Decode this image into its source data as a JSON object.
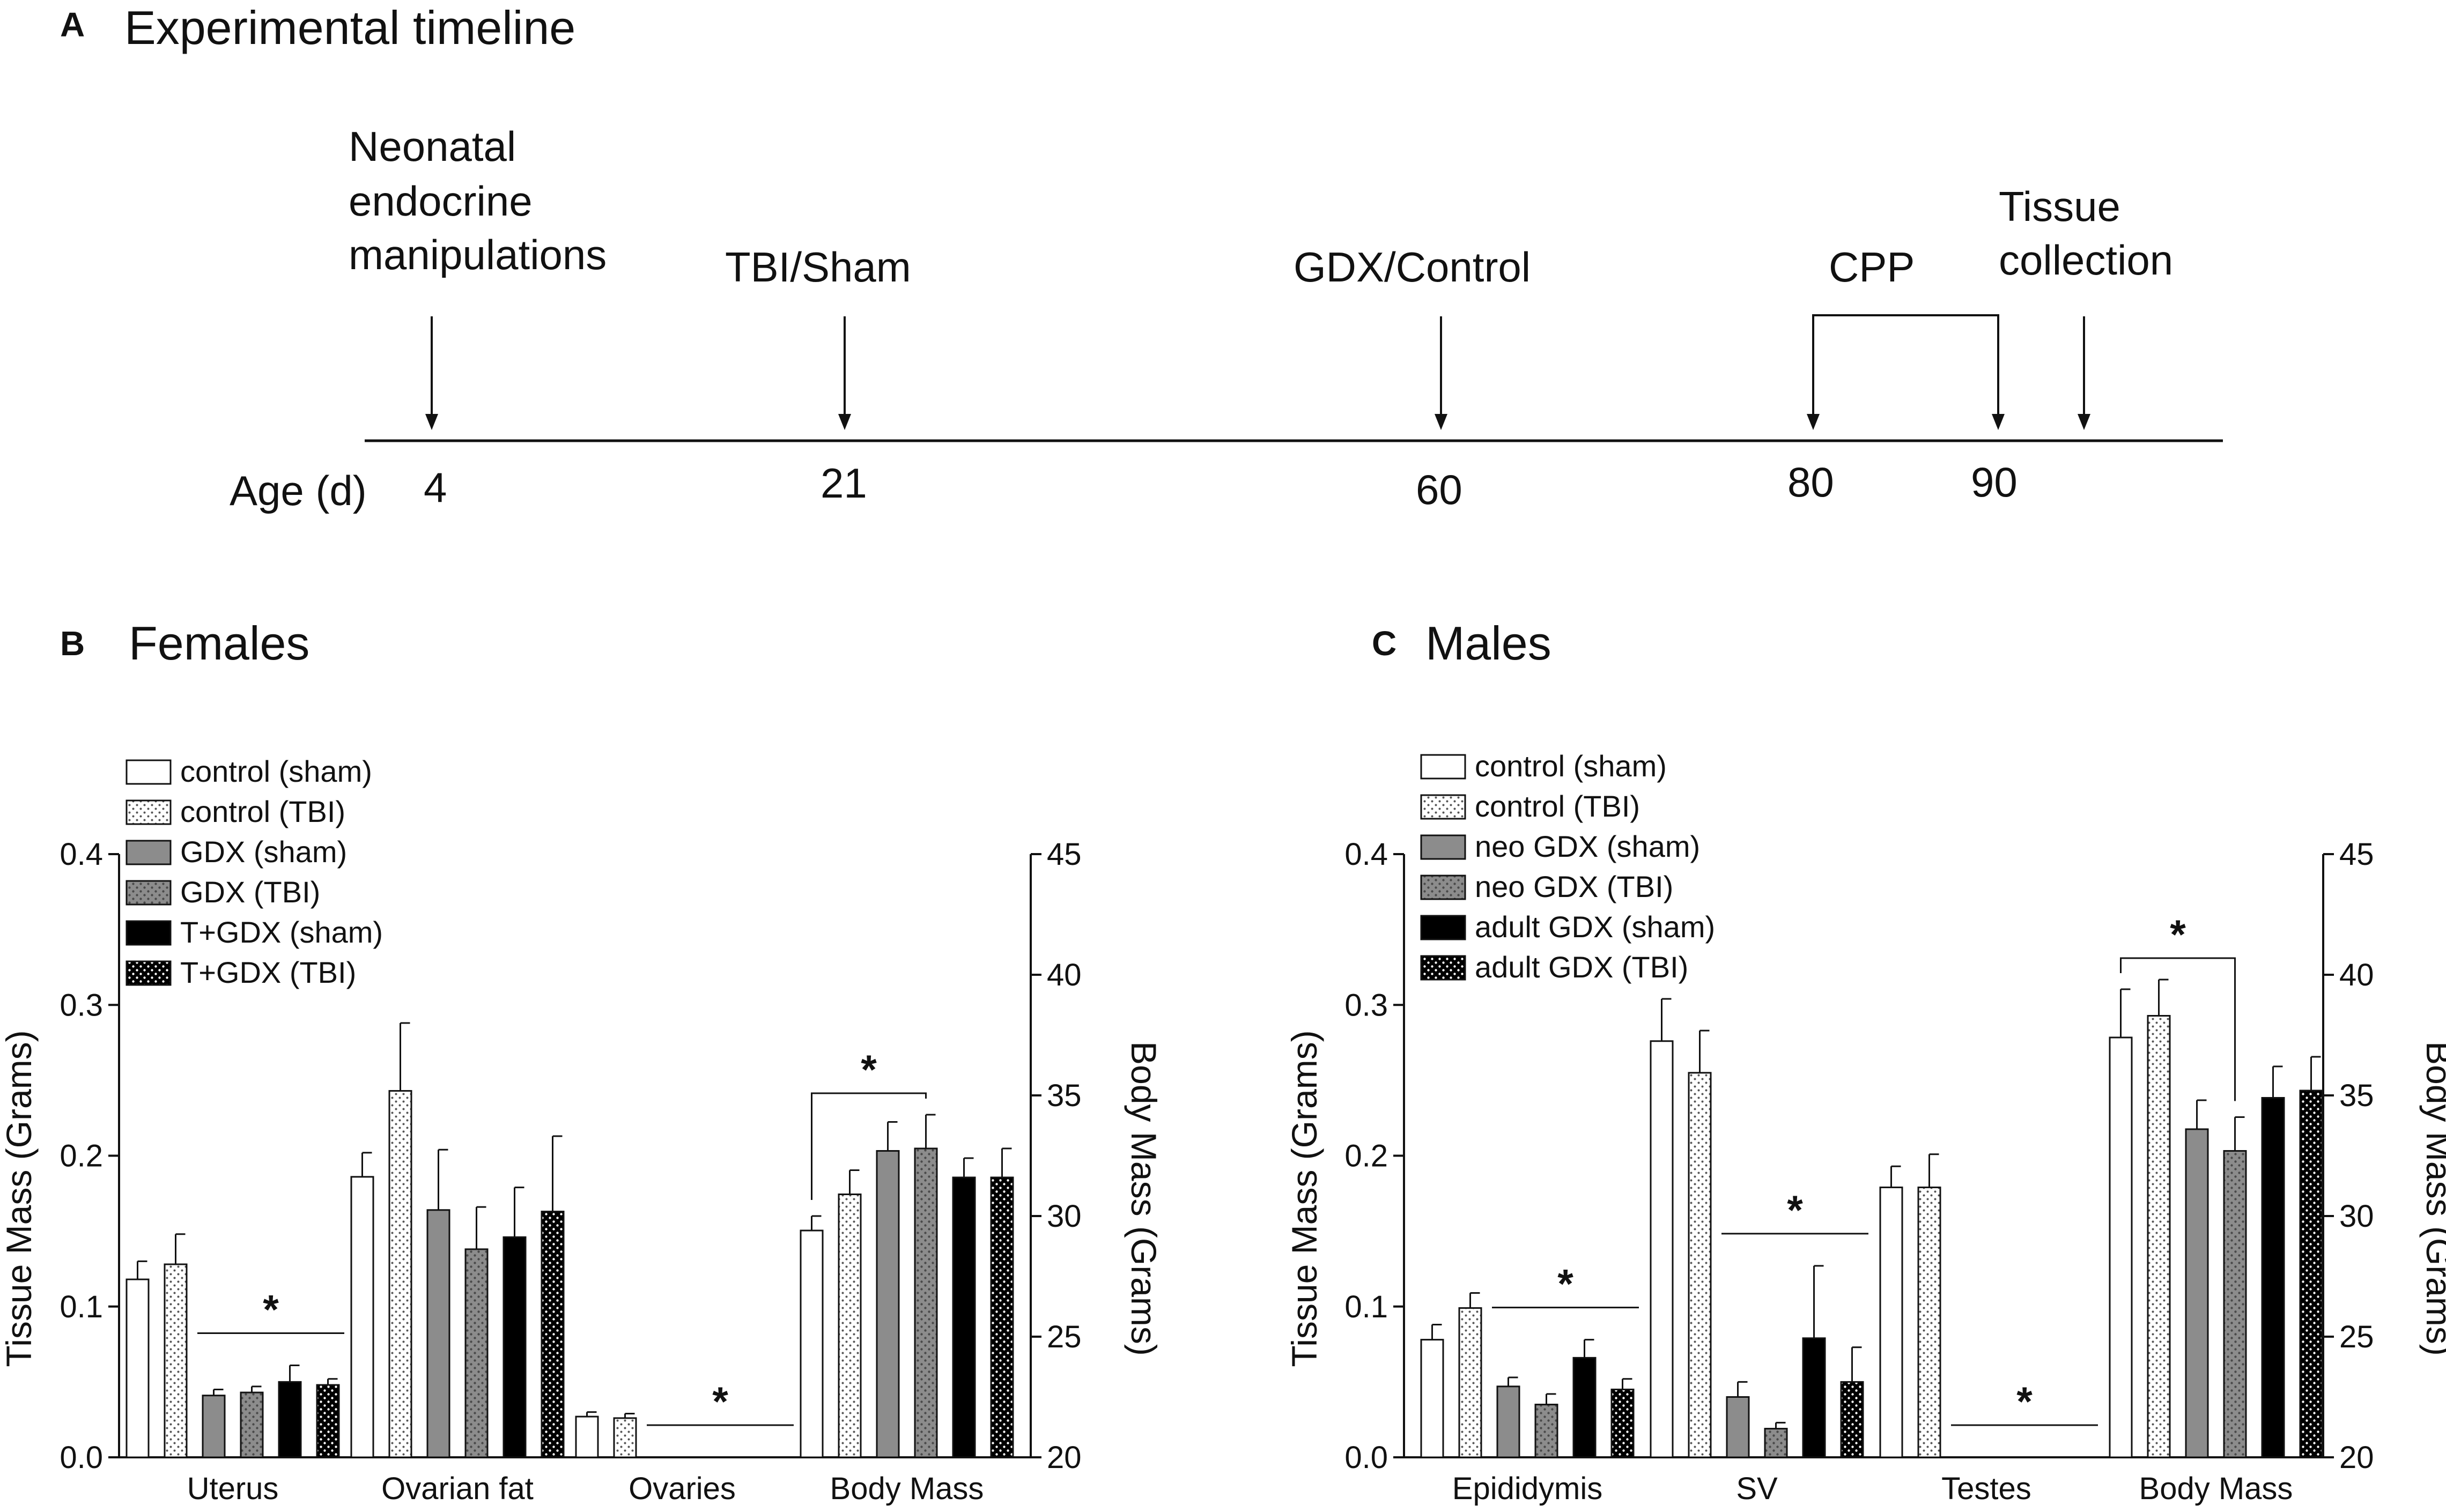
{
  "panel_a": {
    "letter": "A",
    "title": "Experimental timeline",
    "axis_label": "Age (d)",
    "events": [
      {
        "lines": [
          "Neonatal",
          "endocrine",
          "manipulations"
        ],
        "day": "4"
      },
      {
        "lines": [
          "TBI/Sham"
        ],
        "day": "21"
      },
      {
        "lines": [
          "GDX/Control"
        ],
        "day": "60"
      },
      {
        "lines": [
          "CPP"
        ],
        "day": "80",
        "day_end": "90"
      },
      {
        "lines": [
          "Tissue",
          "collection"
        ],
        "day": ""
      }
    ]
  },
  "chart_data": [
    {
      "panel": "B",
      "title": "Females",
      "type": "bar",
      "categories": [
        "Uterus",
        "Ovarian fat",
        "Ovaries",
        "Body Mass"
      ],
      "ylabel": "Tissue Mass (Grams)",
      "ylim": [
        0,
        0.4
      ],
      "yticks": [
        "0.0",
        "0.1",
        "0.2",
        "0.3",
        "0.4"
      ],
      "y2label": "Body Mass (Grams)",
      "y2lim": [
        20,
        45
      ],
      "y2ticks": [
        "20",
        "25",
        "30",
        "35",
        "40",
        "45"
      ],
      "right_axis_categories": [
        "Body Mass"
      ],
      "legend_position": "top-left",
      "series": [
        {
          "name": "control (sham)",
          "fill": "white",
          "values": [
            0.118,
            0.186,
            0.027,
            29.4
          ],
          "errors": [
            0.012,
            0.016,
            0.003,
            0.6
          ]
        },
        {
          "name": "control (TBI)",
          "fill": "dots",
          "values": [
            0.128,
            0.243,
            0.026,
            30.9
          ],
          "errors": [
            0.02,
            0.045,
            0.003,
            1.0
          ]
        },
        {
          "name": "GDX (sham)",
          "fill": "gray",
          "values": [
            0.041,
            0.164,
            0,
            32.7
          ],
          "errors": [
            0.004,
            0.04,
            0,
            1.2
          ]
        },
        {
          "name": "GDX (TBI)",
          "fill": "gray-dots",
          "values": [
            0.043,
            0.138,
            0,
            32.8
          ],
          "errors": [
            0.004,
            0.028,
            0,
            1.4
          ]
        },
        {
          "name": "T+GDX (sham)",
          "fill": "black",
          "values": [
            0.05,
            0.146,
            0,
            31.6
          ],
          "errors": [
            0.011,
            0.033,
            0,
            0.8
          ]
        },
        {
          "name": "T+GDX (TBI)",
          "fill": "black-dots",
          "values": [
            0.048,
            0.163,
            0,
            31.6
          ],
          "errors": [
            0.004,
            0.05,
            0,
            1.2
          ]
        }
      ],
      "significance": [
        {
          "label": "*",
          "category": "Uterus",
          "kind": "line"
        },
        {
          "label": "*",
          "category": "Ovaries",
          "kind": "line"
        },
        {
          "label": "*",
          "category": "Body Mass",
          "kind": "bracket"
        }
      ]
    },
    {
      "panel": "C",
      "title": "Males",
      "type": "bar",
      "categories": [
        "Epididymis",
        "SV",
        "Testes",
        "Body Mass"
      ],
      "ylabel": "Tissue Mass (Grams)",
      "ylim": [
        0,
        0.4
      ],
      "yticks": [
        "0.0",
        "0.1",
        "0.2",
        "0.3",
        "0.4"
      ],
      "y2label": "Body Mass (Grams)",
      "y2lim": [
        20,
        45
      ],
      "y2ticks": [
        "20",
        "25",
        "30",
        "35",
        "40",
        "45"
      ],
      "right_axis_categories": [
        "Body Mass"
      ],
      "legend_position": "top-left",
      "series": [
        {
          "name": "control (sham)",
          "fill": "white",
          "values": [
            0.078,
            0.276,
            0.179,
            37.4
          ],
          "errors": [
            0.01,
            0.028,
            0.014,
            2.0
          ]
        },
        {
          "name": "control (TBI)",
          "fill": "dots",
          "values": [
            0.099,
            0.255,
            0.179,
            38.3
          ],
          "errors": [
            0.01,
            0.028,
            0.022,
            1.5
          ]
        },
        {
          "name": "neo GDX (sham)",
          "fill": "gray",
          "values": [
            0.047,
            0.04,
            0,
            33.6
          ],
          "errors": [
            0.006,
            0.01,
            0,
            1.2
          ]
        },
        {
          "name": "neo GDX (TBI)",
          "fill": "gray-dots",
          "values": [
            0.035,
            0.019,
            0,
            32.7
          ],
          "errors": [
            0.007,
            0.004,
            0,
            1.4
          ]
        },
        {
          "name": "adult GDX (sham)",
          "fill": "black",
          "values": [
            0.066,
            0.079,
            0,
            34.9
          ],
          "errors": [
            0.012,
            0.048,
            0,
            1.3
          ]
        },
        {
          "name": "adult GDX (TBI)",
          "fill": "black-dots",
          "values": [
            0.045,
            0.05,
            0,
            35.2
          ],
          "errors": [
            0.007,
            0.023,
            0,
            1.4
          ]
        }
      ],
      "significance": [
        {
          "label": "*",
          "category": "Epididymis",
          "kind": "line"
        },
        {
          "label": "*",
          "category": "SV",
          "kind": "line"
        },
        {
          "label": "*",
          "category": "Testes",
          "kind": "line"
        },
        {
          "label": "*",
          "category": "Body Mass",
          "kind": "bracket"
        }
      ]
    }
  ]
}
